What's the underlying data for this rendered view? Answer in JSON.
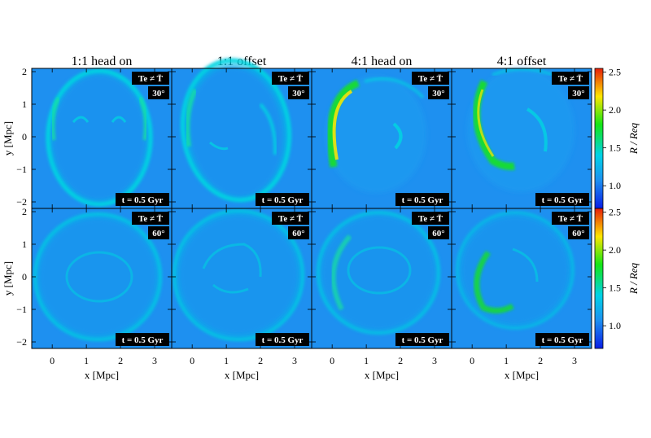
{
  "chart_data": {
    "type": "heatmap",
    "column_titles": [
      "1:1 head on",
      "1:1 offset",
      "4:1 head on",
      "4:1 offset"
    ],
    "rows": [
      {
        "angle": "30°",
        "colorbar_ticks": [
          "1.0",
          "1.5",
          "2.0",
          "2.5"
        ]
      },
      {
        "angle": "60°",
        "colorbar_ticks": [
          "1.0",
          "1.5",
          "2.0",
          "2.5"
        ]
      }
    ],
    "label_te": "Te ≠ T̄",
    "time_label": "t = 0.5 Gyr",
    "x_ticks": [
      "0",
      "1",
      "2",
      "3"
    ],
    "y_ticks": [
      "2",
      "1",
      "0",
      "-1",
      "-2"
    ],
    "xlabel": "x [Mpc]",
    "ylabel": "y [Mpc]",
    "colorbar_label": "R / Req",
    "xlim": [
      -0.6,
      3.5
    ],
    "ylim": [
      -2.2,
      2.1
    ],
    "colorbar_range": [
      0.7,
      2.55
    ],
    "colors": {
      "background": "#1e90f0",
      "low": "#0a1ee6",
      "mid": "#00d2e6",
      "green": "#14e614",
      "yellow": "#ffe600",
      "high": "#e61e0a"
    }
  }
}
